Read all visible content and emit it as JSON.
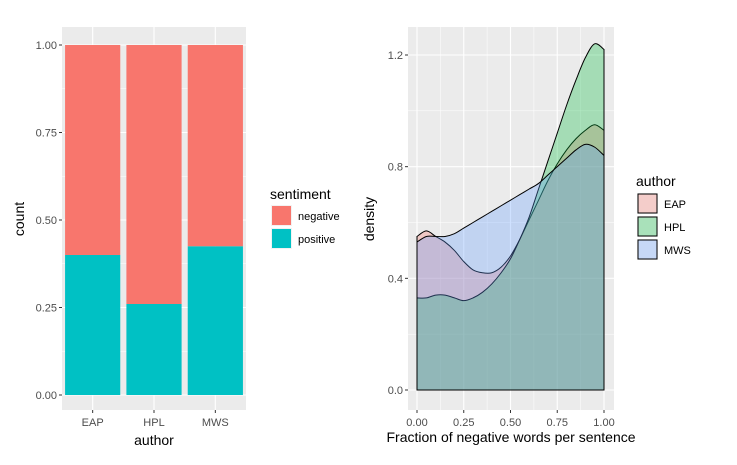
{
  "chart_data": [
    {
      "type": "bar",
      "stacked": true,
      "categories": [
        "EAP",
        "HPL",
        "MWS"
      ],
      "series": [
        {
          "name": "negative",
          "values": [
            0.6,
            0.74,
            0.575
          ]
        },
        {
          "name": "positive",
          "values": [
            0.4,
            0.26,
            0.425
          ]
        }
      ],
      "xlabel": "author",
      "ylabel": "count",
      "ylim": [
        0,
        1
      ],
      "yticks": [
        "0.00",
        "0.25",
        "0.50",
        "0.75",
        "1.00"
      ],
      "legend": {
        "title": "sentiment",
        "position": "right"
      },
      "grid": true,
      "colors": {
        "negative": "#F8766D",
        "positive": "#00C1C4",
        "panel": "#EBEBEB",
        "grid": "#FFFFFF"
      }
    },
    {
      "type": "area",
      "subtype": "density",
      "x": [
        0.0,
        0.05,
        0.1,
        0.15,
        0.2,
        0.25,
        0.3,
        0.35,
        0.4,
        0.45,
        0.5,
        0.55,
        0.6,
        0.65,
        0.7,
        0.75,
        0.8,
        0.85,
        0.9,
        0.95,
        1.0
      ],
      "series": [
        {
          "name": "EAP",
          "values": [
            0.55,
            0.57,
            0.55,
            0.53,
            0.5,
            0.46,
            0.43,
            0.42,
            0.42,
            0.44,
            0.48,
            0.54,
            0.61,
            0.68,
            0.75,
            0.81,
            0.86,
            0.9,
            0.93,
            0.95,
            0.93
          ]
        },
        {
          "name": "HPL",
          "values": [
            0.33,
            0.33,
            0.34,
            0.34,
            0.33,
            0.32,
            0.33,
            0.35,
            0.38,
            0.42,
            0.47,
            0.54,
            0.62,
            0.72,
            0.82,
            0.92,
            1.02,
            1.11,
            1.19,
            1.24,
            1.22
          ]
        },
        {
          "name": "MWS",
          "values": [
            0.53,
            0.55,
            0.55,
            0.55,
            0.56,
            0.58,
            0.6,
            0.62,
            0.64,
            0.66,
            0.68,
            0.7,
            0.72,
            0.74,
            0.77,
            0.8,
            0.83,
            0.86,
            0.88,
            0.87,
            0.84
          ]
        }
      ],
      "xlabel": "Fraction of negative words per sentence",
      "ylabel": "density",
      "xlim": [
        0,
        1
      ],
      "ylim": [
        0,
        1.28
      ],
      "xticks": [
        "0.00",
        "0.25",
        "0.50",
        "0.75",
        "1.00"
      ],
      "yticks": [
        "0.0",
        "0.4",
        "0.8",
        "1.2"
      ],
      "legend": {
        "title": "author",
        "position": "right"
      },
      "grid": true,
      "colors": {
        "EAP": "#F8766D",
        "HPL": "#00BA38",
        "MWS": "#619CFF",
        "panel": "#EBEBEB",
        "grid": "#FFFFFF"
      }
    }
  ]
}
